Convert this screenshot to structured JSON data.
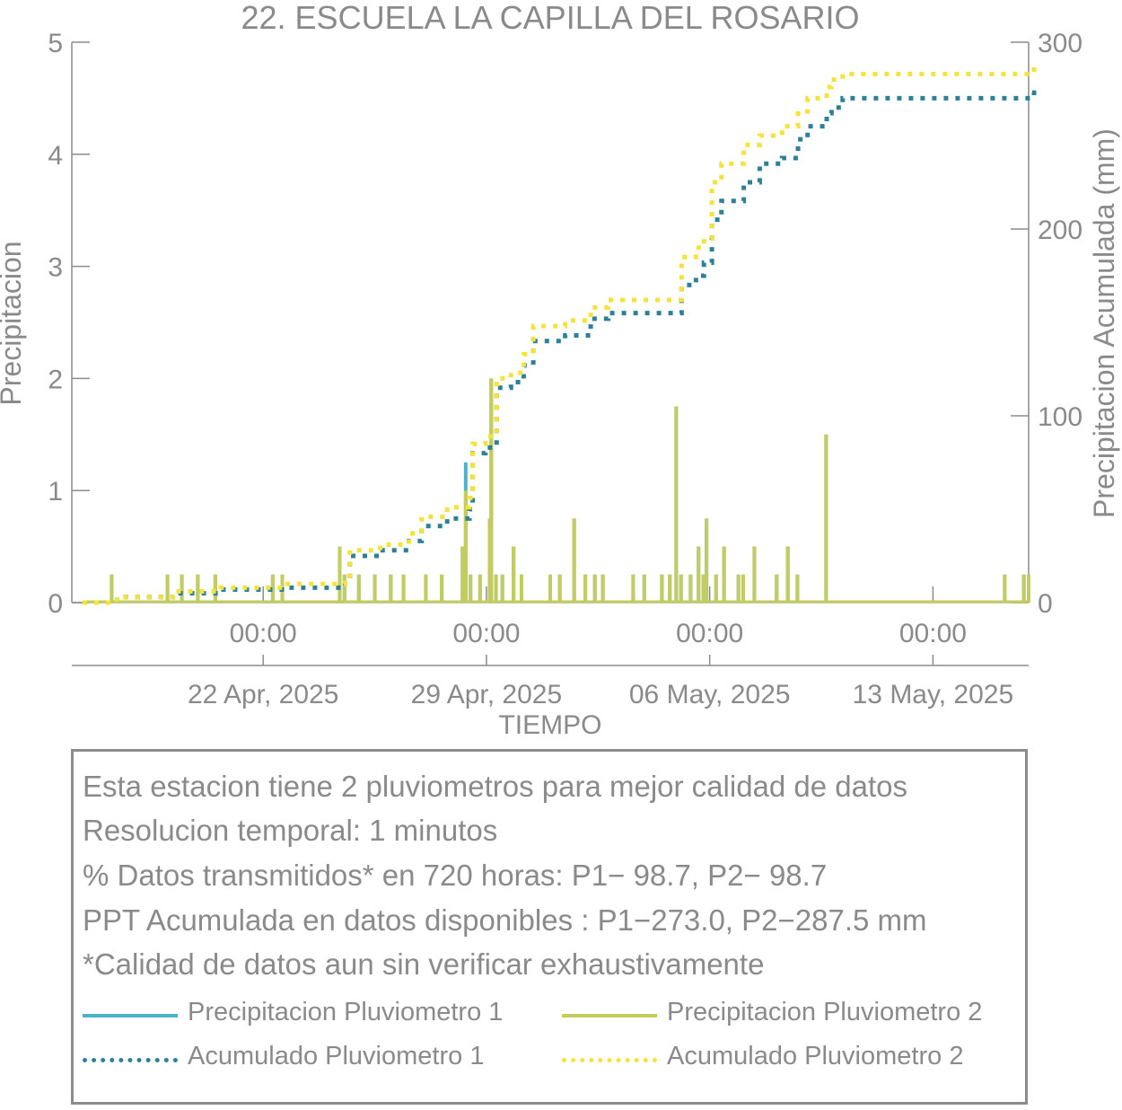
{
  "chart_data": {
    "type": "bar+line",
    "title": "22. ESCUELA LA CAPILLA DEL ROSARIO",
    "xlabel": "TIEMPO",
    "ylabel_left": "Precipitacion",
    "ylabel_right": "Precipitacion Acumulada (mm)",
    "ylim_left": [
      0,
      5
    ],
    "ylim_right": [
      0,
      300
    ],
    "yticks_left": [
      "0",
      "1",
      "2",
      "3",
      "4",
      "5"
    ],
    "yticks_right": [
      "0",
      "100",
      "200",
      "300"
    ],
    "xlim_days": [
      0,
      30
    ],
    "xticks": [
      {
        "day": 6,
        "time": "00:00",
        "date": "22 Apr, 2025"
      },
      {
        "day": 13,
        "time": "00:00",
        "date": "29 Apr, 2025"
      },
      {
        "day": 20,
        "time": "00:00",
        "date": "06 May, 2025"
      },
      {
        "day": 27,
        "time": "00:00",
        "date": "13 May, 2025"
      }
    ],
    "colors": {
      "p1_bar": "#4fb3c8",
      "p2_bar": "#c3cc5e",
      "p1_cum": "#2e7f98",
      "p2_cum": "#f3e33a",
      "axis": "#8c8c8c",
      "text": "#8a8a8a"
    },
    "series": [
      {
        "name": "Precipitacion Pluviometro 1",
        "kind": "bar",
        "points": [
          [
            1.25,
            0.25
          ],
          [
            3.0,
            0.25
          ],
          [
            3.45,
            0.25
          ],
          [
            3.95,
            0.25
          ],
          [
            4.5,
            0.25
          ],
          [
            6.3,
            0.25
          ],
          [
            6.6,
            0.25
          ],
          [
            8.4,
            0.5
          ],
          [
            8.55,
            0.25
          ],
          [
            9.0,
            0.25
          ],
          [
            9.5,
            0.25
          ],
          [
            10.0,
            0.25
          ],
          [
            10.4,
            0.25
          ],
          [
            11.1,
            0.25
          ],
          [
            11.6,
            0.25
          ],
          [
            12.25,
            0.5
          ],
          [
            12.35,
            1.25
          ],
          [
            12.5,
            0.25
          ],
          [
            12.8,
            0.25
          ],
          [
            13.1,
            0.75
          ],
          [
            13.15,
            2.0
          ],
          [
            13.3,
            0.25
          ],
          [
            13.5,
            0.25
          ],
          [
            13.85,
            0.5
          ],
          [
            14.1,
            0.25
          ],
          [
            15.0,
            0.25
          ],
          [
            15.3,
            0.25
          ],
          [
            15.75,
            0.75
          ],
          [
            16.1,
            0.25
          ],
          [
            16.4,
            0.25
          ],
          [
            16.65,
            0.25
          ],
          [
            17.6,
            0.25
          ],
          [
            17.95,
            0.25
          ],
          [
            18.5,
            0.25
          ],
          [
            18.75,
            0.25
          ],
          [
            18.95,
            1.75
          ],
          [
            19.1,
            0.25
          ],
          [
            19.4,
            0.25
          ],
          [
            19.65,
            0.5
          ],
          [
            19.8,
            0.25
          ],
          [
            19.9,
            0.75
          ],
          [
            20.2,
            0.25
          ],
          [
            20.45,
            0.5
          ],
          [
            20.9,
            0.25
          ],
          [
            21.05,
            0.25
          ],
          [
            21.4,
            0.5
          ],
          [
            22.1,
            0.25
          ],
          [
            22.45,
            0.5
          ],
          [
            22.75,
            0.25
          ],
          [
            23.65,
            1.5
          ],
          [
            29.25,
            0.25
          ],
          [
            29.85,
            0.25
          ],
          [
            30.0,
            0.25
          ]
        ]
      },
      {
        "name": "Precipitacion Pluviometro 2",
        "kind": "bar",
        "points": [
          [
            1.25,
            0.25
          ],
          [
            3.0,
            0.25
          ],
          [
            3.45,
            0.25
          ],
          [
            3.95,
            0.25
          ],
          [
            4.5,
            0.25
          ],
          [
            6.3,
            0.25
          ],
          [
            6.6,
            0.25
          ],
          [
            8.4,
            0.5
          ],
          [
            8.55,
            0.25
          ],
          [
            9.0,
            0.25
          ],
          [
            9.5,
            0.25
          ],
          [
            10.0,
            0.25
          ],
          [
            10.4,
            0.25
          ],
          [
            11.1,
            0.25
          ],
          [
            11.6,
            0.25
          ],
          [
            12.25,
            0.5
          ],
          [
            12.35,
            1.0
          ],
          [
            12.5,
            0.25
          ],
          [
            12.8,
            0.25
          ],
          [
            13.1,
            0.75
          ],
          [
            13.15,
            2.0
          ],
          [
            13.3,
            0.25
          ],
          [
            13.5,
            0.25
          ],
          [
            13.85,
            0.5
          ],
          [
            14.1,
            0.25
          ],
          [
            15.0,
            0.25
          ],
          [
            15.3,
            0.25
          ],
          [
            15.75,
            0.75
          ],
          [
            16.1,
            0.25
          ],
          [
            16.4,
            0.25
          ],
          [
            16.65,
            0.25
          ],
          [
            17.6,
            0.25
          ],
          [
            17.95,
            0.25
          ],
          [
            18.5,
            0.25
          ],
          [
            18.75,
            0.25
          ],
          [
            18.95,
            1.75
          ],
          [
            19.1,
            0.25
          ],
          [
            19.4,
            0.25
          ],
          [
            19.65,
            0.5
          ],
          [
            19.8,
            0.25
          ],
          [
            19.9,
            0.75
          ],
          [
            20.2,
            0.25
          ],
          [
            20.45,
            0.5
          ],
          [
            20.9,
            0.25
          ],
          [
            21.05,
            0.25
          ],
          [
            21.4,
            0.5
          ],
          [
            22.1,
            0.25
          ],
          [
            22.45,
            0.5
          ],
          [
            22.75,
            0.25
          ],
          [
            23.65,
            1.5
          ],
          [
            29.25,
            0.25
          ],
          [
            29.85,
            0.25
          ],
          [
            30.0,
            0.25
          ]
        ]
      },
      {
        "name": "Acumulado Pluviometro 1",
        "kind": "line",
        "points": [
          [
            0,
            0
          ],
          [
            1.25,
            3
          ],
          [
            3.0,
            5
          ],
          [
            4.5,
            7
          ],
          [
            6.6,
            8
          ],
          [
            8.4,
            12
          ],
          [
            8.55,
            25
          ],
          [
            9.5,
            28
          ],
          [
            10.4,
            33
          ],
          [
            10.8,
            41
          ],
          [
            11.6,
            45
          ],
          [
            12.3,
            50
          ],
          [
            12.4,
            80
          ],
          [
            12.8,
            83
          ],
          [
            13.15,
            115
          ],
          [
            13.6,
            118
          ],
          [
            14.0,
            127
          ],
          [
            14.3,
            140
          ],
          [
            15.3,
            143
          ],
          [
            16.1,
            152
          ],
          [
            16.65,
            155
          ],
          [
            18.8,
            155
          ],
          [
            18.95,
            170
          ],
          [
            19.4,
            175
          ],
          [
            19.65,
            182
          ],
          [
            19.9,
            205
          ],
          [
            20.2,
            215
          ],
          [
            20.9,
            225
          ],
          [
            21.4,
            235
          ],
          [
            22.1,
            238
          ],
          [
            22.6,
            248
          ],
          [
            22.9,
            255
          ],
          [
            23.5,
            262
          ],
          [
            23.65,
            265
          ],
          [
            24.0,
            270
          ],
          [
            29.85,
            270
          ],
          [
            30.0,
            273
          ]
        ]
      },
      {
        "name": "Acumulado Pluviometro 2",
        "kind": "line",
        "points": [
          [
            0,
            0
          ],
          [
            1.25,
            3
          ],
          [
            3.0,
            6
          ],
          [
            4.5,
            8
          ],
          [
            6.6,
            10
          ],
          [
            8.4,
            12
          ],
          [
            8.55,
            28
          ],
          [
            9.5,
            31
          ],
          [
            10.4,
            37
          ],
          [
            10.8,
            46
          ],
          [
            11.6,
            51
          ],
          [
            12.3,
            56
          ],
          [
            12.4,
            85
          ],
          [
            12.8,
            89
          ],
          [
            13.15,
            120
          ],
          [
            13.6,
            123
          ],
          [
            14.0,
            133
          ],
          [
            14.3,
            148
          ],
          [
            15.3,
            151
          ],
          [
            16.1,
            158
          ],
          [
            16.65,
            162
          ],
          [
            18.8,
            162
          ],
          [
            18.95,
            185
          ],
          [
            19.4,
            190
          ],
          [
            19.65,
            195
          ],
          [
            19.9,
            225
          ],
          [
            20.2,
            235
          ],
          [
            20.9,
            245
          ],
          [
            21.4,
            250
          ],
          [
            22.1,
            255
          ],
          [
            22.6,
            263
          ],
          [
            22.9,
            270
          ],
          [
            23.5,
            276
          ],
          [
            23.65,
            280
          ],
          [
            24.0,
            283
          ],
          [
            29.85,
            283
          ],
          [
            30.0,
            287.5
          ]
        ]
      }
    ]
  },
  "info": {
    "line1": "Esta estacion tiene 2 pluviometros para mejor calidad de datos",
    "line2": "Resolucion temporal: 1 minutos",
    "line3": "% Datos transmitidos* en 720 horas: P1− 98.7, P2− 98.7",
    "line4": "PPT Acumulada en datos disponibles : P1−273.0, P2−287.5 mm",
    "line5": "*Calidad de datos aun sin verificar exhaustivamente"
  },
  "legend": [
    {
      "label": "Precipitacion Pluviometro 1",
      "color": "#4fb3c8",
      "style": "solid"
    },
    {
      "label": "Precipitacion Pluviometro 2",
      "color": "#c3cc5e",
      "style": "solid"
    },
    {
      "label": "Acumulado Pluviometro 1",
      "color": "#2e7f98",
      "style": "dotted"
    },
    {
      "label": "Acumulado Pluviometro 2",
      "color": "#f3e33a",
      "style": "dotted"
    }
  ]
}
